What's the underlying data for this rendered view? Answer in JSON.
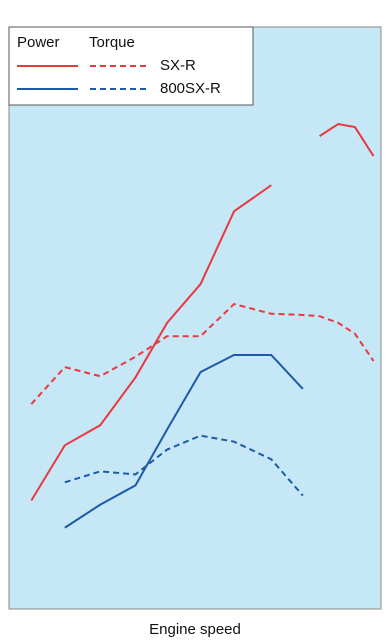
{
  "chart_data": {
    "type": "line",
    "x_label": "Engine speed",
    "legend_headers": [
      "Power",
      "Torque"
    ],
    "x": [
      6,
      15,
      24.5,
      34,
      42.5,
      51.5,
      60.5,
      70.5,
      79,
      83.5,
      88.5,
      93,
      98
    ],
    "xlim": [
      0,
      100
    ],
    "ylim": [
      0,
      96
    ],
    "background": "#c6e7f6",
    "series": [
      {
        "name": "SX-R",
        "color": "#e8393f",
        "power": [
          17.9,
          27.0,
          30.3,
          38.2,
          47.2,
          53.6,
          65.6,
          69.9,
          null,
          78.0,
          80.0,
          79.5,
          74.7
        ],
        "torque": [
          33.8,
          39.9,
          38.4,
          41.6,
          45.0,
          45.0,
          50.3,
          48.7,
          48.5,
          48.3,
          47.2,
          45.4,
          40.9
        ]
      },
      {
        "name": "800SX-R",
        "color": "#1f5aa6",
        "power": [
          null,
          13.4,
          17.2,
          20.4,
          29.6,
          39.1,
          41.9,
          41.9,
          36.3,
          null,
          null,
          null,
          null
        ],
        "torque": [
          null,
          20.9,
          22.7,
          22.2,
          26.3,
          28.6,
          27.6,
          24.7,
          18.7,
          null,
          null,
          null,
          null
        ]
      }
    ]
  }
}
